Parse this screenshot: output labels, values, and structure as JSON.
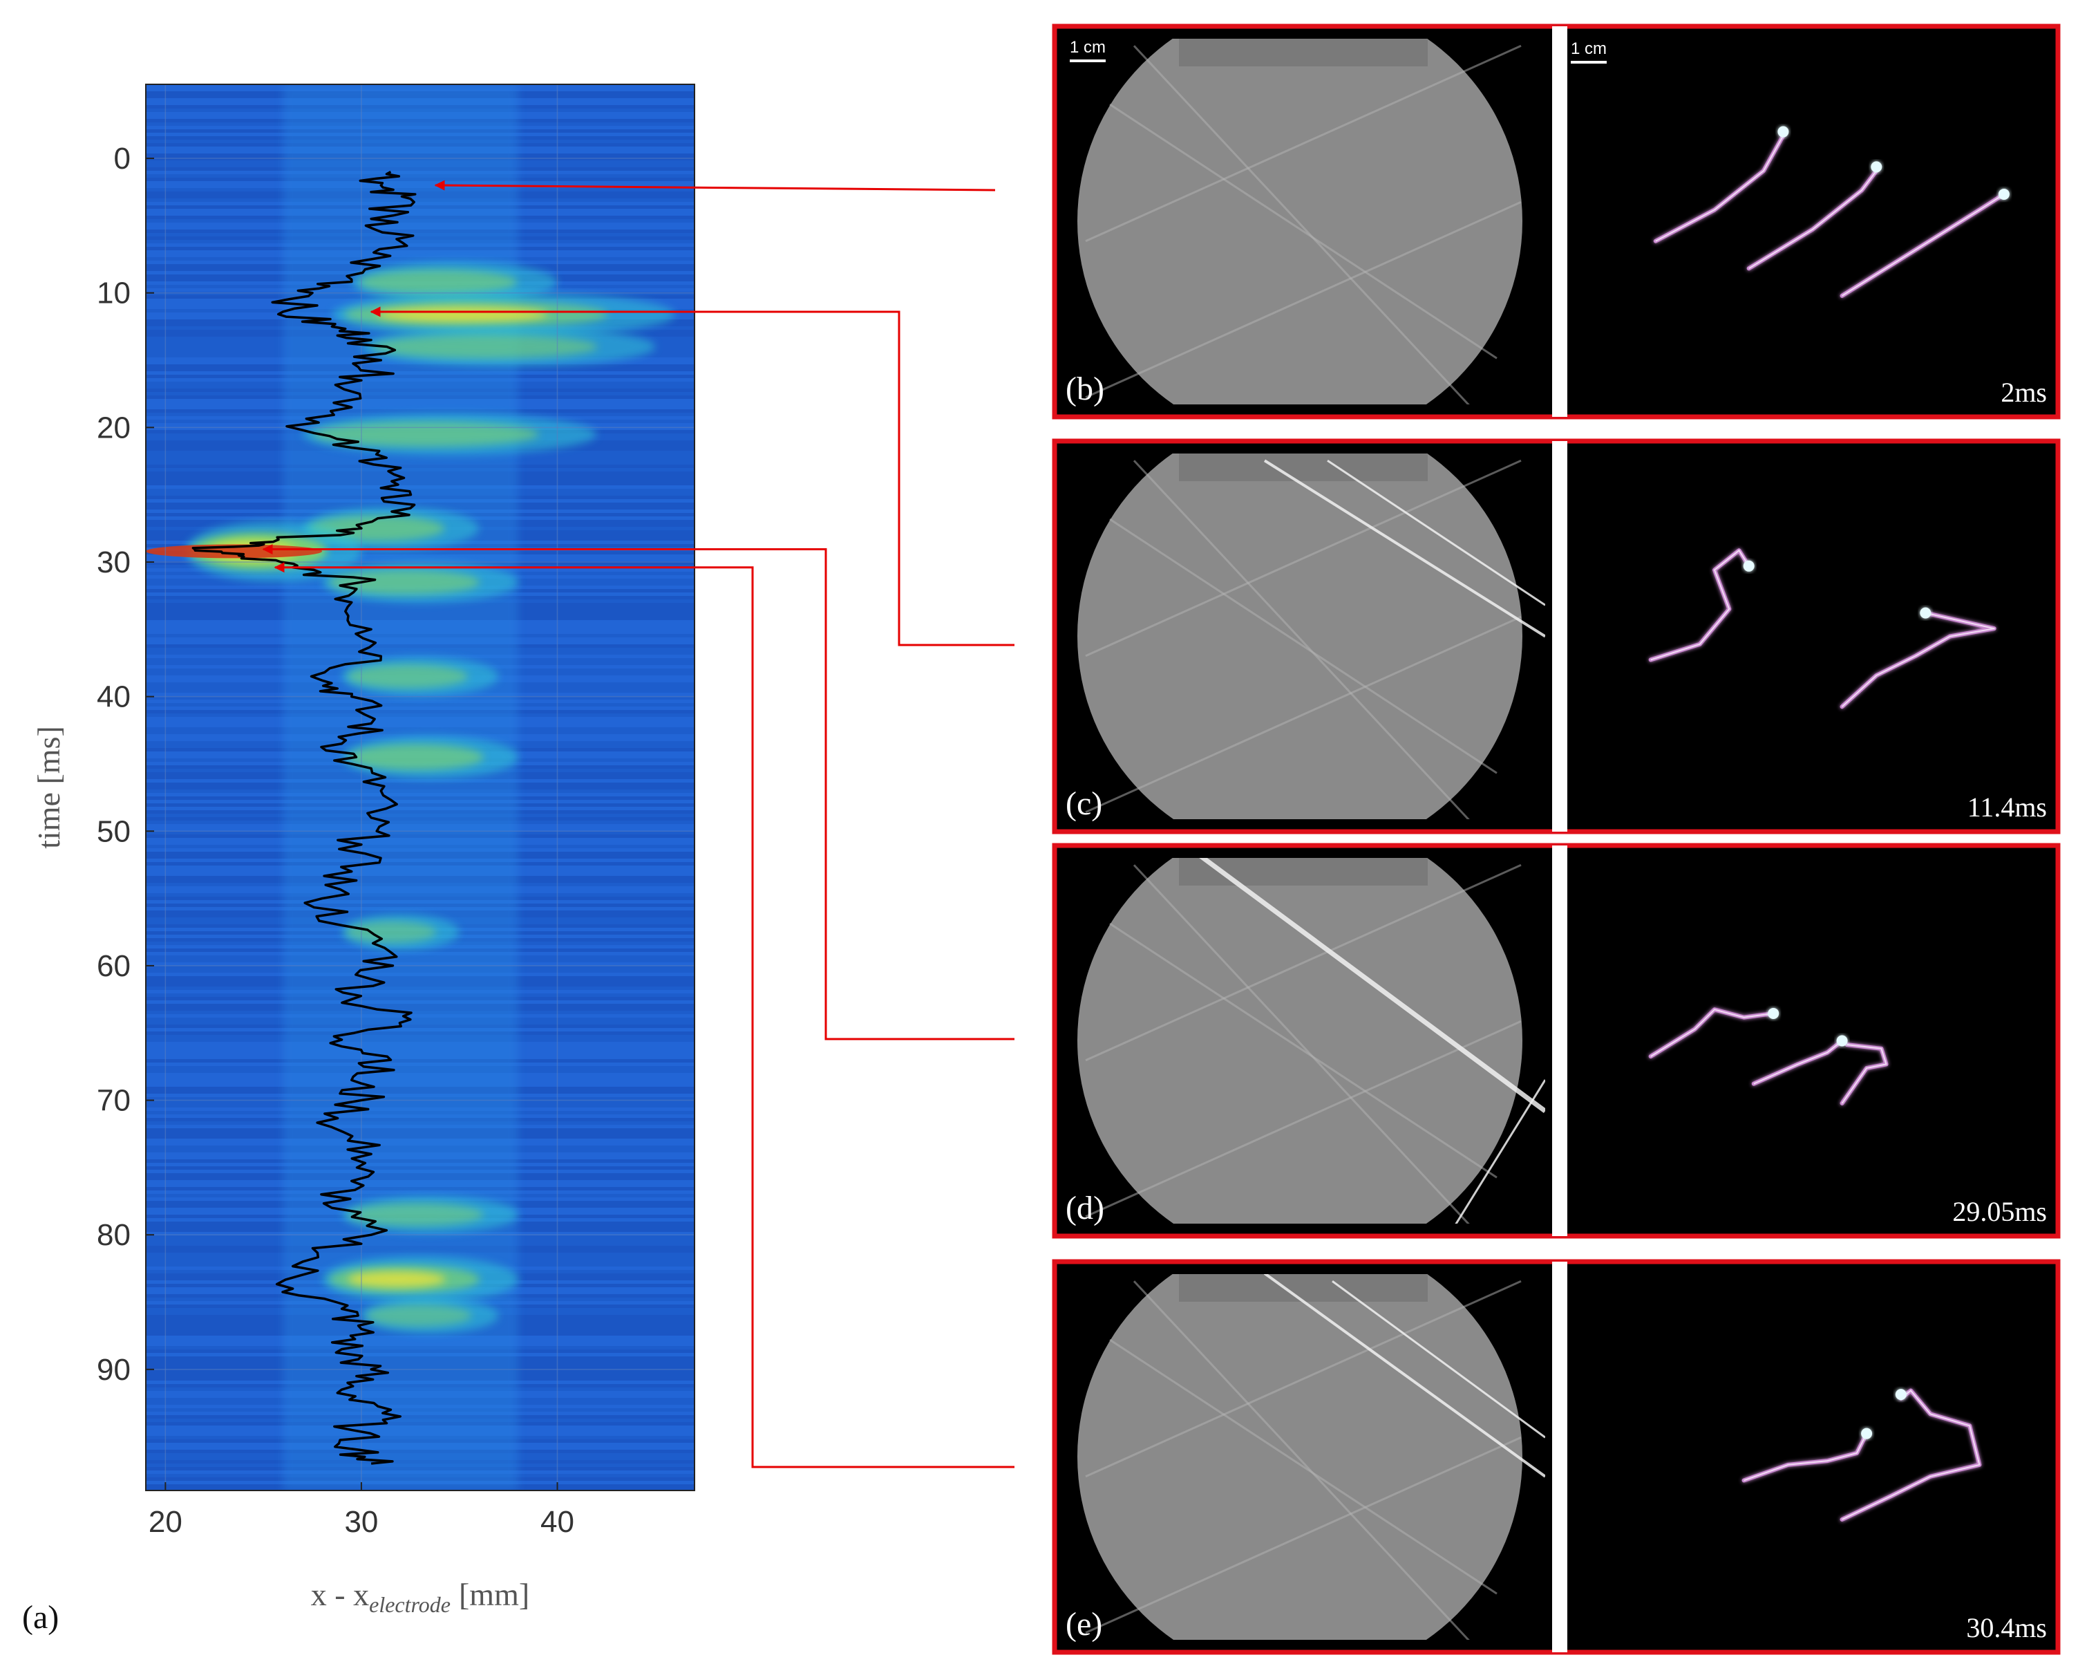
{
  "figure_label": "(a)",
  "colors": {
    "map_background": "#1f5fd0",
    "map_band": "#2a8ee8",
    "hot_cyan": "#33c6d6",
    "hot_green": "#8ee05a",
    "hot_yellow": "#e9e33b",
    "hot_red": "#d23a1a",
    "trace": "#000000",
    "callout": "#e60000",
    "panel_border": "#e0101a"
  },
  "chart_data": {
    "type": "heatmap",
    "title": "",
    "xlabel": "x - x",
    "xlabel_subscript": "electrode",
    "xlabel_unit": "[mm]",
    "ylabel": "time [ms]",
    "xlim": [
      19,
      47
    ],
    "ylim": [
      -5.5,
      99
    ],
    "y_reversed": true,
    "grid": true,
    "xticks": [
      20,
      30,
      40
    ],
    "yticks": [
      0,
      10,
      20,
      30,
      40,
      50,
      60,
      70,
      80,
      90
    ],
    "hot_regions": [
      {
        "t": 9.2,
        "x0": 29.5,
        "x1": 40,
        "level": 0.45
      },
      {
        "t": 11.6,
        "x0": 28.5,
        "x1": 46,
        "level": 0.55
      },
      {
        "t": 14,
        "x0": 30,
        "x1": 45,
        "level": 0.4
      },
      {
        "t": 20.5,
        "x0": 27,
        "x1": 42,
        "level": 0.45
      },
      {
        "t": 27.5,
        "x0": 27,
        "x1": 36,
        "level": 0.5
      },
      {
        "t": 29.2,
        "x0": 21,
        "x1": 30,
        "level": 1.0
      },
      {
        "t": 31.5,
        "x0": 28,
        "x1": 38,
        "level": 0.45
      },
      {
        "t": 38.5,
        "x0": 29,
        "x1": 37,
        "level": 0.4
      },
      {
        "t": 44.5,
        "x0": 29,
        "x1": 38,
        "level": 0.5
      },
      {
        "t": 57.5,
        "x0": 29,
        "x1": 35,
        "level": 0.3
      },
      {
        "t": 78.5,
        "x0": 29,
        "x1": 38,
        "level": 0.35
      },
      {
        "t": 83.3,
        "x0": 28,
        "x1": 38,
        "level": 0.6
      },
      {
        "t": 86,
        "x0": 30,
        "x1": 37,
        "level": 0.3
      }
    ],
    "trace_points": [
      [
        1.0,
        31.5
      ],
      [
        2.0,
        31.0
      ],
      [
        3.0,
        32.5
      ],
      [
        4.5,
        30.5
      ],
      [
        6.0,
        31.8
      ],
      [
        7.5,
        30.5
      ],
      [
        9.0,
        29.5
      ],
      [
        10.0,
        27.5
      ],
      [
        11.4,
        26.0
      ],
      [
        12.5,
        28.5
      ],
      [
        13.5,
        30.5
      ],
      [
        15.0,
        31.0
      ],
      [
        16.5,
        30.0
      ],
      [
        18.5,
        29.5
      ],
      [
        20.2,
        27.0
      ],
      [
        21.5,
        29.5
      ],
      [
        23.0,
        32.0
      ],
      [
        24.5,
        31.0
      ],
      [
        26.0,
        32.5
      ],
      [
        27.5,
        30.0
      ],
      [
        28.5,
        25.5
      ],
      [
        29.05,
        21.5
      ],
      [
        29.6,
        24.0
      ],
      [
        30.4,
        26.5
      ],
      [
        31.5,
        30.0
      ],
      [
        33.0,
        29.5
      ],
      [
        35.0,
        30.5
      ],
      [
        37.0,
        31.0
      ],
      [
        38.8,
        28.0
      ],
      [
        40.0,
        29.5
      ],
      [
        42.0,
        30.5
      ],
      [
        43.5,
        29.0
      ],
      [
        45.0,
        29.5
      ],
      [
        47.0,
        31.0
      ],
      [
        49.0,
        30.5
      ],
      [
        51.0,
        30.0
      ],
      [
        53.0,
        29.5
      ],
      [
        55.0,
        28.0
      ],
      [
        57.0,
        29.0
      ],
      [
        59.0,
        31.5
      ],
      [
        61.0,
        30.5
      ],
      [
        62.5,
        29.5
      ],
      [
        64.0,
        32.5
      ],
      [
        65.5,
        29.0
      ],
      [
        67.0,
        31.5
      ],
      [
        68.5,
        29.5
      ],
      [
        70.0,
        30.0
      ],
      [
        72.0,
        28.5
      ],
      [
        74.0,
        30.5
      ],
      [
        76.0,
        29.5
      ],
      [
        78.0,
        28.5
      ],
      [
        80.0,
        30.5
      ],
      [
        82.0,
        27.0
      ],
      [
        84.0,
        26.5
      ],
      [
        85.5,
        29.0
      ],
      [
        87.0,
        30.0
      ],
      [
        88.5,
        29.0
      ],
      [
        90.0,
        30.5
      ],
      [
        91.5,
        29.0
      ],
      [
        93.0,
        31.5
      ],
      [
        94.5,
        29.5
      ],
      [
        96.0,
        30.0
      ],
      [
        97.0,
        30.5
      ]
    ],
    "marked_times_ms": [
      2,
      11.4,
      29.05,
      30.4
    ]
  },
  "panels": [
    {
      "label": "(b)",
      "time": "2ms",
      "scale_left": "1 cm",
      "scale_right": "1 cm",
      "shocks": [],
      "sparks": [
        [
          [
            0.18,
            0.55
          ],
          [
            0.3,
            0.47
          ],
          [
            0.4,
            0.37
          ],
          [
            0.44,
            0.28
          ]
        ],
        [
          [
            0.37,
            0.62
          ],
          [
            0.5,
            0.52
          ],
          [
            0.6,
            0.42
          ],
          [
            0.63,
            0.37
          ]
        ],
        [
          [
            0.56,
            0.69
          ],
          [
            0.7,
            0.58
          ],
          [
            0.84,
            0.47
          ],
          [
            0.89,
            0.43
          ]
        ]
      ],
      "heads": [
        [
          0.44,
          0.27
        ],
        [
          0.63,
          0.36
        ],
        [
          0.89,
          0.43
        ]
      ]
    },
    {
      "label": "(c)",
      "time": "11.4ms",
      "scale_left": "",
      "scale_right": "",
      "shocks": [
        [
          0.42,
          0.05,
          1.0,
          0.5,
          4
        ],
        [
          0.55,
          0.05,
          1.0,
          0.42,
          3
        ]
      ],
      "sparks": [
        [
          [
            0.17,
            0.56
          ],
          [
            0.27,
            0.52
          ],
          [
            0.33,
            0.43
          ],
          [
            0.3,
            0.33
          ],
          [
            0.35,
            0.28
          ],
          [
            0.37,
            0.32
          ]
        ],
        [
          [
            0.56,
            0.68
          ],
          [
            0.63,
            0.6
          ],
          [
            0.71,
            0.55
          ],
          [
            0.78,
            0.5
          ],
          [
            0.87,
            0.48
          ],
          [
            0.8,
            0.46
          ],
          [
            0.73,
            0.44
          ]
        ]
      ],
      "heads": [
        [
          0.37,
          0.32
        ],
        [
          0.73,
          0.44
        ]
      ]
    },
    {
      "label": "(d)",
      "time": "29.05ms",
      "scale_left": "",
      "scale_right": "",
      "shocks": [
        [
          0.28,
          0.02,
          1.0,
          0.68,
          7
        ],
        [
          0.8,
          1.0,
          1.0,
          0.6,
          3
        ]
      ],
      "sparks": [
        [
          [
            0.17,
            0.54
          ],
          [
            0.26,
            0.47
          ],
          [
            0.3,
            0.42
          ],
          [
            0.36,
            0.44
          ],
          [
            0.42,
            0.43
          ]
        ],
        [
          [
            0.38,
            0.61
          ],
          [
            0.47,
            0.56
          ],
          [
            0.53,
            0.53
          ],
          [
            0.56,
            0.5
          ]
        ],
        [
          [
            0.56,
            0.66
          ],
          [
            0.61,
            0.57
          ],
          [
            0.65,
            0.56
          ],
          [
            0.64,
            0.52
          ],
          [
            0.57,
            0.51
          ]
        ]
      ],
      "heads": [
        [
          0.42,
          0.43
        ],
        [
          0.56,
          0.5
        ]
      ]
    },
    {
      "label": "(e)",
      "time": "30.4ms",
      "scale_left": "",
      "scale_right": "",
      "shocks": [
        [
          0.42,
          0.03,
          1.0,
          0.55,
          4
        ],
        [
          0.56,
          0.05,
          1.0,
          0.45,
          3
        ]
      ],
      "sparks": [
        [
          [
            0.36,
            0.56
          ],
          [
            0.45,
            0.52
          ],
          [
            0.53,
            0.51
          ],
          [
            0.59,
            0.49
          ],
          [
            0.61,
            0.44
          ]
        ],
        [
          [
            0.56,
            0.66
          ],
          [
            0.66,
            0.6
          ],
          [
            0.74,
            0.55
          ],
          [
            0.84,
            0.52
          ],
          [
            0.82,
            0.42
          ],
          [
            0.74,
            0.39
          ],
          [
            0.7,
            0.33
          ],
          [
            0.68,
            0.35
          ]
        ]
      ],
      "heads": [
        [
          0.61,
          0.44
        ],
        [
          0.68,
          0.34
        ]
      ]
    }
  ]
}
